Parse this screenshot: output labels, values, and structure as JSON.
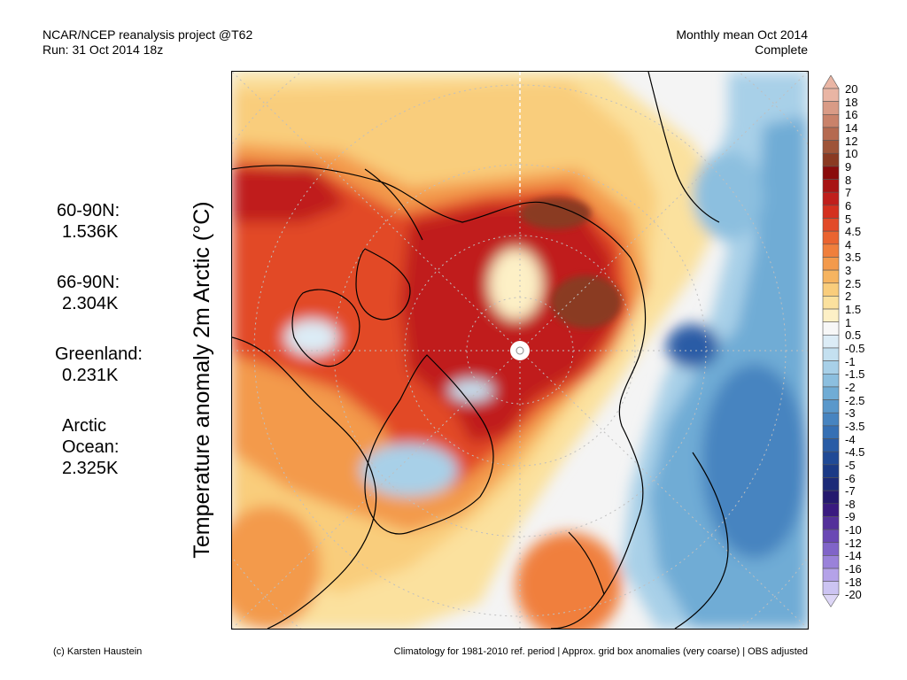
{
  "header": {
    "line1_left": "NCAR/NCEP reanalysis project @T62",
    "line2_left": "Run: 31 Oct 2014 18z",
    "line1_right": "Monthly mean Oct 2014",
    "line2_right": "Complete"
  },
  "stats": {
    "s1_label": "60-90N:",
    "s1_value": "1.536K",
    "s2_label": "66-90N:",
    "s2_value": "2.304K",
    "s3_label": "Greenland:",
    "s3_value": "0.231K",
    "s4_label1": "Arctic",
    "s4_label2": "Ocean:",
    "s4_value": "2.325K"
  },
  "y_axis_label": "Temperature anomaly 2m Arctic (°C)",
  "colorbar": {
    "labels": [
      "20",
      "18",
      "16",
      "14",
      "12",
      "10",
      "9",
      "8",
      "7",
      "6",
      "5",
      "4.5",
      "4",
      "3.5",
      "3",
      "2.5",
      "2",
      "1.5",
      "1",
      "0.5",
      "-0.5",
      "-1",
      "-1.5",
      "-2",
      "-2.5",
      "-3",
      "-3.5",
      "-4",
      "-4.5",
      "-5",
      "-6",
      "-7",
      "-8",
      "-9",
      "-10",
      "-12",
      "-14",
      "-16",
      "-18",
      "-20"
    ],
    "colors": [
      "#e9b5a4",
      "#d99b86",
      "#c9826a",
      "#b56a50",
      "#9e5438",
      "#8a3a22",
      "#8a0c0c",
      "#a81414",
      "#c01f1c",
      "#d4301f",
      "#e24a28",
      "#ea6430",
      "#f07f3c",
      "#f39a4c",
      "#f6b460",
      "#f9cd7c",
      "#fbe19e",
      "#fdf0c6",
      "#f7f7f7",
      "#dcecf6",
      "#c4e0f0",
      "#a8d0e8",
      "#8cbfdf",
      "#70acd5",
      "#5a98cb",
      "#4784c0",
      "#3670b4",
      "#295ca6",
      "#204a96",
      "#1b3a86",
      "#1c2a78",
      "#25196e",
      "#3a1a80",
      "#54309a",
      "#6a48b4",
      "#8064c8",
      "#9a82da",
      "#b4a2e8",
      "#ccc4f2"
    ],
    "color_notes": "warm=positive anomaly, cool=negative anomaly"
  },
  "footer": {
    "left": "(c) Karsten Haustein",
    "right": "Climatology for 1981-2010 ref. period | Approx. grid box anomalies (very coarse) | OBS adjusted"
  },
  "map_regions": [
    {
      "name": "warm-central-arctic",
      "color": "#d4301f"
    },
    {
      "name": "hot-spot-east-siberia",
      "color": "#8a3a22"
    },
    {
      "name": "cold-eurasia",
      "color": "#5a98cb"
    }
  ]
}
